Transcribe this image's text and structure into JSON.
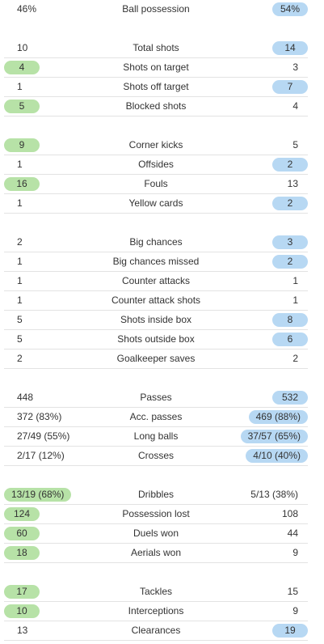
{
  "groups": [
    [
      {
        "label": "Ball possession",
        "home": "46%",
        "away": "54%",
        "hl": "away"
      }
    ],
    [
      {
        "label": "Total shots",
        "home": "10",
        "away": "14",
        "hl": "away"
      },
      {
        "label": "Shots on target",
        "home": "4",
        "away": "3",
        "hl": "home"
      },
      {
        "label": "Shots off target",
        "home": "1",
        "away": "7",
        "hl": "away"
      },
      {
        "label": "Blocked shots",
        "home": "5",
        "away": "4",
        "hl": "home"
      }
    ],
    [
      {
        "label": "Corner kicks",
        "home": "9",
        "away": "5",
        "hl": "home"
      },
      {
        "label": "Offsides",
        "home": "1",
        "away": "2",
        "hl": "away"
      },
      {
        "label": "Fouls",
        "home": "16",
        "away": "13",
        "hl": "home"
      },
      {
        "label": "Yellow cards",
        "home": "1",
        "away": "2",
        "hl": "away"
      }
    ],
    [
      {
        "label": "Big chances",
        "home": "2",
        "away": "3",
        "hl": "away"
      },
      {
        "label": "Big chances missed",
        "home": "1",
        "away": "2",
        "hl": "away"
      },
      {
        "label": "Counter attacks",
        "home": "1",
        "away": "1",
        "hl": "none"
      },
      {
        "label": "Counter attack shots",
        "home": "1",
        "away": "1",
        "hl": "none"
      },
      {
        "label": "Shots inside box",
        "home": "5",
        "away": "8",
        "hl": "away"
      },
      {
        "label": "Shots outside box",
        "home": "5",
        "away": "6",
        "hl": "away"
      },
      {
        "label": "Goalkeeper saves",
        "home": "2",
        "away": "2",
        "hl": "none"
      }
    ],
    [
      {
        "label": "Passes",
        "home": "448",
        "away": "532",
        "hl": "away"
      },
      {
        "label": "Acc. passes",
        "home": "372 (83%)",
        "away": "469 (88%)",
        "hl": "away"
      },
      {
        "label": "Long balls",
        "home": "27/49 (55%)",
        "away": "37/57 (65%)",
        "hl": "away"
      },
      {
        "label": "Crosses",
        "home": "2/17 (12%)",
        "away": "4/10 (40%)",
        "hl": "away"
      }
    ],
    [
      {
        "label": "Dribbles",
        "home": "13/19 (68%)",
        "away": "5/13 (38%)",
        "hl": "home"
      },
      {
        "label": "Possession lost",
        "home": "124",
        "away": "108",
        "hl": "home"
      },
      {
        "label": "Duels won",
        "home": "60",
        "away": "44",
        "hl": "home"
      },
      {
        "label": "Aerials won",
        "home": "18",
        "away": "9",
        "hl": "home"
      }
    ],
    [
      {
        "label": "Tackles",
        "home": "17",
        "away": "15",
        "hl": "home"
      },
      {
        "label": "Interceptions",
        "home": "10",
        "away": "9",
        "hl": "home"
      },
      {
        "label": "Clearances",
        "home": "13",
        "away": "19",
        "hl": "away"
      }
    ]
  ],
  "colors": {
    "home_highlight": "#b7e2a7",
    "away_highlight": "#b7d8f3",
    "divider": "#e3e3e3"
  }
}
